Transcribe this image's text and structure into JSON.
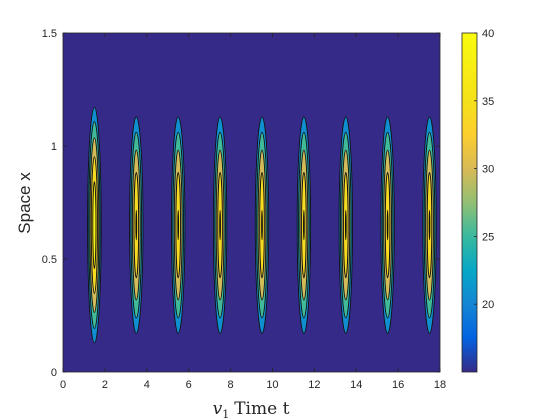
{
  "chart_data": {
    "type": "heatmap",
    "subtype": "filled-contour",
    "title": "",
    "xlabel_var": "v",
    "xlabel_sub": "1",
    "xlabel_rest": "Time t",
    "ylabel": "Space x",
    "xlim": [
      0,
      18
    ],
    "ylim": [
      0,
      1.5
    ],
    "xticks": [
      0,
      2,
      4,
      6,
      8,
      10,
      12,
      14,
      16,
      18
    ],
    "yticks": [
      0,
      0.5,
      1,
      1.5
    ],
    "ytick_labels": [
      "0",
      "0.5",
      "1",
      "1.5"
    ],
    "colorbar": {
      "colormap": "parula",
      "range": [
        15,
        40
      ],
      "ticks": [
        20,
        25,
        30,
        35,
        40
      ]
    },
    "contour_levels": [
      18.5,
      23,
      27.5,
      32,
      36.5
    ],
    "grid": false,
    "pattern": {
      "period": 2.0,
      "first_peak_t": 1.5,
      "center_x": 0.65,
      "base_value": 15.5,
      "peak_value_first": 40,
      "peak_value_later": 37
    }
  }
}
